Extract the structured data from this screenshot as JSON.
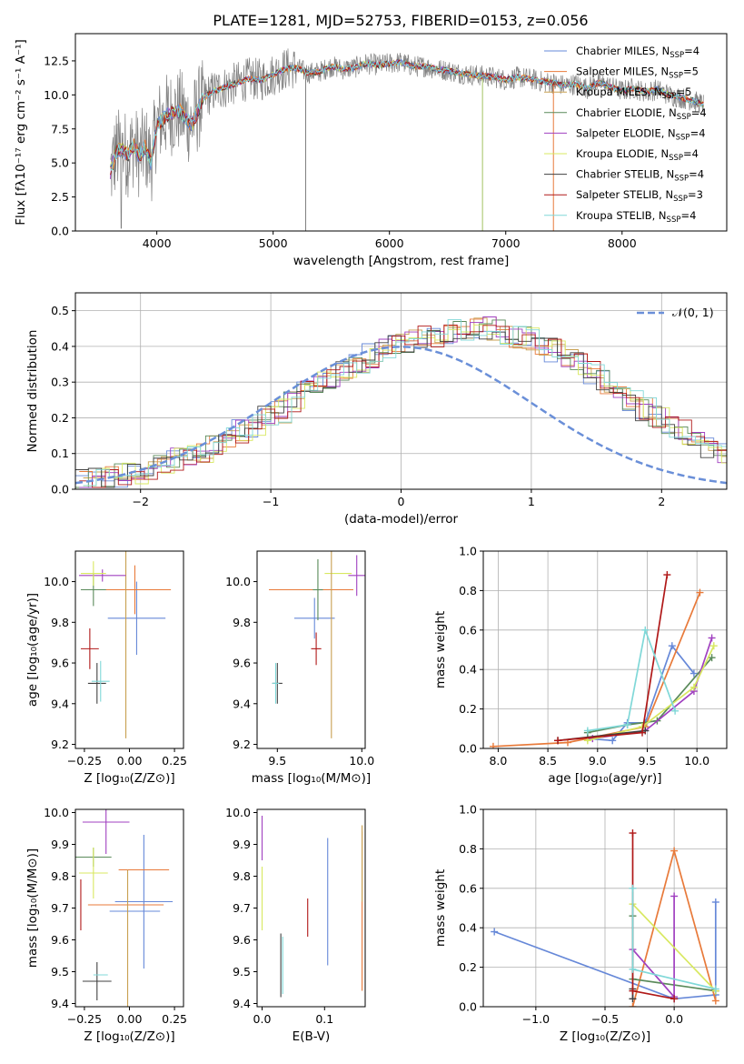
{
  "figure": {
    "title": "PLATE=1281, MJD=52753, FIBERID=0153, z=0.056"
  },
  "colors": {
    "data": "#808080",
    "series": [
      "#6688d8",
      "#e87a3a",
      "#c8a050",
      "#5a8a5a",
      "#a040c0",
      "#d8e860",
      "#404040",
      "#b01818",
      "#80d8d8"
    ],
    "normal": "#6a8fd8"
  },
  "chart_data": [
    {
      "id": "spectrum",
      "type": "line",
      "title": "PLATE=1281, MJD=52753, FIBERID=0153, z=0.056",
      "xlabel": "wavelength [Angstrom, rest frame]",
      "ylabel": "Flux [fλ10⁻¹⁷ erg cm⁻² s⁻¹ A⁻¹]",
      "xlim": [
        3300,
        8900
      ],
      "ylim": [
        0,
        14.5
      ],
      "xticks": [
        "4000",
        "5000",
        "6000",
        "7000",
        "8000"
      ],
      "xtick_values": [
        4000,
        5000,
        6000,
        7000,
        8000
      ],
      "yticks": [
        "0.0",
        "2.5",
        "5.0",
        "7.5",
        "10.0",
        "12.5"
      ],
      "ytick_values": [
        0,
        2.5,
        5,
        7.5,
        10,
        12.5
      ],
      "grid": false,
      "legend": "upper-right",
      "continuum": {
        "x": [
          3600,
          3650,
          3700,
          3750,
          3800,
          3850,
          3900,
          3950,
          4000,
          4100,
          4200,
          4300,
          4400,
          4500,
          4600,
          4700,
          4800,
          4900,
          5000,
          5100,
          5200,
          5300,
          5400,
          5500,
          5600,
          5700,
          5800,
          5900,
          6000,
          6100,
          6200,
          6300,
          6400,
          6500,
          6600,
          6700,
          6800,
          6900,
          7000,
          7100,
          7200,
          7300,
          7400,
          7500,
          7600,
          7700,
          7800,
          7900,
          8000,
          8100,
          8200,
          8300,
          8400,
          8500,
          8600,
          8700
        ],
        "y": [
          4.3,
          5.8,
          6.0,
          5.6,
          6.3,
          5.5,
          6.2,
          5.0,
          7.8,
          8.6,
          8.8,
          7.8,
          9.8,
          10.3,
          10.6,
          10.9,
          11.2,
          11.1,
          11.5,
          11.9,
          12.0,
          11.6,
          11.7,
          12.1,
          11.9,
          12.0,
          12.3,
          12.2,
          12.3,
          12.4,
          12.1,
          12.1,
          11.9,
          11.8,
          11.6,
          11.5,
          11.4,
          11.3,
          11.1,
          11.3,
          11.2,
          11.0,
          10.9,
          10.7,
          10.8,
          10.5,
          10.9,
          10.6,
          10.3,
          10.5,
          10.2,
          10.4,
          10.0,
          9.8,
          9.6,
          9.3
        ]
      },
      "series": [
        {
          "name": "Chabrier MILES, N_SSP=4",
          "label": "Chabrier MILES, N",
          "sub": "SSP",
          "tail": "=4"
        },
        {
          "name": "Salpeter MILES, N_SSP=5",
          "label": "Salpeter MILES, N",
          "sub": "SSP",
          "tail": "=5"
        },
        {
          "name": "Kroupa MILES, N_SSP=5",
          "label": "Kroupa MILES, N",
          "sub": "SSP",
          "tail": "=5"
        },
        {
          "name": "Chabrier ELODIE, N_SSP=4",
          "label": "Chabrier ELODIE, N",
          "sub": "SSP",
          "tail": "=4"
        },
        {
          "name": "Salpeter ELODIE, N_SSP=4",
          "label": "Salpeter ELODIE, N",
          "sub": "SSP",
          "tail": "=4"
        },
        {
          "name": "Kroupa ELODIE, N_SSP=4",
          "label": "Kroupa ELODIE, N",
          "sub": "SSP",
          "tail": "=4"
        },
        {
          "name": "Chabrier STELIB, N_SSP=4",
          "label": "Chabrier STELIB, N",
          "sub": "SSP",
          "tail": "=4"
        },
        {
          "name": "Salpeter STELIB, N_SSP=3",
          "label": "Salpeter STELIB, N",
          "sub": "SSP",
          "tail": "=3"
        },
        {
          "name": "Kroupa STELIB, N_SSP=4",
          "label": "Kroupa STELIB, N",
          "sub": "SSP",
          "tail": "=4"
        }
      ]
    },
    {
      "id": "residuals",
      "type": "line",
      "xlabel": "(data-model)/error",
      "ylabel": "Normed distribution",
      "xlim": [
        -2.5,
        2.5
      ],
      "ylim": [
        0,
        0.55
      ],
      "xticks": [
        "−2",
        "−1",
        "0",
        "1",
        "2"
      ],
      "xtick_values": [
        -2,
        -1,
        0,
        1,
        2
      ],
      "yticks": [
        "0.0",
        "0.1",
        "0.2",
        "0.3",
        "0.4",
        "0.5"
      ],
      "ytick_values": [
        0,
        0.1,
        0.2,
        0.3,
        0.4,
        0.5
      ],
      "grid": true,
      "legend_entry": "𝒩(0, 1)",
      "legend": "upper-right",
      "bin_width": 0.1,
      "hist_envelope": [
        0.02,
        0.025,
        0.035,
        0.04,
        0.045,
        0.055,
        0.07,
        0.085,
        0.1,
        0.11,
        0.125,
        0.14,
        0.16,
        0.18,
        0.2,
        0.22,
        0.245,
        0.27,
        0.295,
        0.315,
        0.34,
        0.36,
        0.375,
        0.39,
        0.405,
        0.415,
        0.425,
        0.43,
        0.44,
        0.445,
        0.45,
        0.45,
        0.44,
        0.43,
        0.42,
        0.405,
        0.39,
        0.37,
        0.35,
        0.33,
        0.3,
        0.28,
        0.25,
        0.225,
        0.2,
        0.18,
        0.16,
        0.14,
        0.12,
        0.105,
        0.09,
        0.075,
        0.065,
        0.055,
        0.045,
        0.035,
        0.03,
        0.025,
        0.02,
        0.018
      ]
    },
    {
      "id": "age-vs-Z",
      "type": "scatter",
      "xlabel": "Z [log₁₀(Z/Z⊙)]",
      "ylabel": "age  [log₁₀(age/yr)]",
      "xlim": [
        -0.3,
        0.3
      ],
      "ylim": [
        9.18,
        10.15
      ],
      "xticks": [
        "−0.25",
        "0.00",
        "0.25"
      ],
      "xtick_values": [
        -0.25,
        0,
        0.25
      ],
      "yticks": [
        "9.2",
        "9.4",
        "9.6",
        "9.8",
        "10.0"
      ],
      "ytick_values": [
        9.2,
        9.4,
        9.6,
        9.8,
        10.0
      ],
      "points": [
        {
          "x": 0.04,
          "y": 9.82,
          "xerr": 0.16,
          "yerr": 0.18,
          "c": 0
        },
        {
          "x": 0.03,
          "y": 9.96,
          "xerr": 0.2,
          "yerr": 0.12,
          "c": 1
        },
        {
          "x": -0.02,
          "y": 9.7,
          "xerr": 0.0,
          "yerr": 0.47,
          "c": 2
        },
        {
          "x": -0.2,
          "y": 9.96,
          "xerr": 0.07,
          "yerr": 0.08,
          "c": 3
        },
        {
          "x": -0.15,
          "y": 10.03,
          "xerr": 0.13,
          "yerr": 0.03,
          "c": 4
        },
        {
          "x": -0.2,
          "y": 10.04,
          "xerr": 0.07,
          "yerr": 0.06,
          "c": 5
        },
        {
          "x": -0.18,
          "y": 9.5,
          "xerr": 0.05,
          "yerr": 0.1,
          "c": 6
        },
        {
          "x": -0.22,
          "y": 9.67,
          "xerr": 0.05,
          "yerr": 0.1,
          "c": 7
        },
        {
          "x": -0.16,
          "y": 9.51,
          "xerr": 0.05,
          "yerr": 0.1,
          "c": 8
        }
      ]
    },
    {
      "id": "age-vs-mass",
      "type": "scatter",
      "xlabel": "mass [log₁₀(M/M⊙)]",
      "ylabel": "",
      "xlim": [
        9.38,
        10.02
      ],
      "ylim": [
        9.18,
        10.15
      ],
      "xticks": [
        "9.5",
        "10.0"
      ],
      "xtick_values": [
        9.5,
        10.0
      ],
      "yticks": [
        "9.2",
        "9.4",
        "9.6",
        "9.8",
        "10.0"
      ],
      "ytick_values": [
        9.2,
        9.4,
        9.6,
        9.8,
        10.0
      ],
      "points": [
        {
          "x": 9.72,
          "y": 9.82,
          "xerr": 0.12,
          "yerr": 0.1,
          "c": 0
        },
        {
          "x": 9.7,
          "y": 9.96,
          "xerr": 0.25,
          "yerr": 0.0,
          "c": 1
        },
        {
          "x": 9.97,
          "y": 10.03,
          "xerr": 0.05,
          "yerr": 0.1,
          "c": 4
        },
        {
          "x": 9.86,
          "y": 10.04,
          "xerr": 0.08,
          "yerr": 0.0,
          "c": 5
        },
        {
          "x": 9.74,
          "y": 9.96,
          "xerr": 0.03,
          "yerr": 0.15,
          "c": 3
        },
        {
          "x": 9.73,
          "y": 9.67,
          "xerr": 0.03,
          "yerr": 0.08,
          "c": 7
        },
        {
          "x": 9.5,
          "y": 9.5,
          "xerr": 0.03,
          "yerr": 0.1,
          "c": 6
        },
        {
          "x": 9.49,
          "y": 9.5,
          "xerr": 0.02,
          "yerr": 0.1,
          "c": 8
        },
        {
          "x": 9.82,
          "y": 9.7,
          "xerr": 0.0,
          "yerr": 0.47,
          "c": 2
        }
      ]
    },
    {
      "id": "massweight-vs-age",
      "type": "line",
      "xlabel": "age  [log₁₀(age/yr)]",
      "ylabel": "mass weight",
      "xlim": [
        7.85,
        10.3
      ],
      "ylim": [
        0,
        1
      ],
      "xticks": [
        "8.0",
        "8.5",
        "9.0",
        "9.5",
        "10.0"
      ],
      "xtick_values": [
        8.0,
        8.5,
        9.0,
        9.5,
        10.0
      ],
      "yticks": [
        "0.0",
        "0.2",
        "0.4",
        "0.6",
        "0.8",
        "1.0"
      ],
      "ytick_values": [
        0,
        0.2,
        0.4,
        0.6,
        0.8,
        1.0
      ],
      "grid": true,
      "series": [
        {
          "c": 0,
          "x": [
            8.9,
            9.15,
            9.3,
            9.48,
            9.75,
            9.97
          ],
          "y": [
            0.05,
            0.04,
            0.13,
            0.13,
            0.52,
            0.38
          ]
        },
        {
          "c": 1,
          "x": [
            7.95,
            8.7,
            9.48,
            10.03
          ],
          "y": [
            0.01,
            0.03,
            0.11,
            0.79
          ]
        },
        {
          "c": 3,
          "x": [
            8.9,
            9.3,
            9.6,
            10.15
          ],
          "y": [
            0.08,
            0.12,
            0.14,
            0.46
          ]
        },
        {
          "c": 4,
          "x": [
            8.95,
            9.48,
            9.97,
            10.15
          ],
          "y": [
            0.05,
            0.09,
            0.29,
            0.56
          ]
        },
        {
          "c": 5,
          "x": [
            8.9,
            9.45,
            9.97,
            10.17
          ],
          "y": [
            0.04,
            0.11,
            0.31,
            0.52
          ]
        },
        {
          "c": 6,
          "x": [
            8.6,
            9.48
          ],
          "y": [
            0.04,
            0.09
          ]
        },
        {
          "c": 7,
          "x": [
            8.6,
            9.45,
            9.7
          ],
          "y": [
            0.04,
            0.08,
            0.88
          ]
        },
        {
          "c": 8,
          "x": [
            8.9,
            9.3,
            9.48,
            9.78
          ],
          "y": [
            0.09,
            0.12,
            0.6,
            0.19
          ]
        }
      ]
    },
    {
      "id": "mass-vs-Z",
      "type": "scatter",
      "xlabel": "Z [log₁₀(Z/Z⊙)]",
      "ylabel": "mass [log₁₀(M/M⊙)]",
      "xlim": [
        -0.3,
        0.3
      ],
      "ylim": [
        9.39,
        10.01
      ],
      "xticks": [
        "−0.25",
        "0.00",
        "0.25"
      ],
      "xtick_values": [
        -0.25,
        0,
        0.25
      ],
      "yticks": [
        "9.4",
        "9.5",
        "9.6",
        "9.7",
        "9.8",
        "9.9",
        "10.0"
      ],
      "ytick_values": [
        9.4,
        9.5,
        9.6,
        9.7,
        9.8,
        9.9,
        10.0
      ],
      "points": [
        {
          "x": 0.03,
          "y": 9.69,
          "xerr": 0.14,
          "yerr": 0.0,
          "c": 0
        },
        {
          "x": 0.08,
          "y": 9.72,
          "xerr": 0.16,
          "yerr": 0.21,
          "c": 0
        },
        {
          "x": -0.02,
          "y": 9.71,
          "xerr": 0.21,
          "yerr": 0.0,
          "c": 1
        },
        {
          "x": 0.08,
          "y": 9.82,
          "xerr": 0.14,
          "yerr": 0.0,
          "c": 1
        },
        {
          "x": -0.01,
          "y": 9.6,
          "xerr": 0.0,
          "yerr": 0.22,
          "c": 2
        },
        {
          "x": -0.2,
          "y": 9.86,
          "xerr": 0.1,
          "yerr": 0.03,
          "c": 3
        },
        {
          "x": -0.13,
          "y": 9.97,
          "xerr": 0.13,
          "yerr": 0.1,
          "c": 4
        },
        {
          "x": -0.2,
          "y": 9.81,
          "xerr": 0.08,
          "yerr": 0.08,
          "c": 5
        },
        {
          "x": -0.18,
          "y": 9.47,
          "xerr": 0.08,
          "yerr": 0.06,
          "c": 6
        },
        {
          "x": -0.27,
          "y": 9.71,
          "xerr": 0.0,
          "yerr": 0.08,
          "c": 7
        },
        {
          "x": -0.16,
          "y": 9.49,
          "xerr": 0.04,
          "yerr": 0.0,
          "c": 8
        }
      ]
    },
    {
      "id": "mass-vs-EBV",
      "type": "scatter",
      "xlabel": "E(B-V)",
      "ylabel": "",
      "xlim": [
        -0.008,
        0.165
      ],
      "ylim": [
        9.39,
        10.01
      ],
      "xticks": [
        "0.0",
        "0.1"
      ],
      "xtick_values": [
        0,
        0.1
      ],
      "yticks": [
        "9.4",
        "9.5",
        "9.6",
        "9.7",
        "9.8",
        "9.9",
        "10.0"
      ],
      "ytick_values": [
        9.4,
        9.5,
        9.6,
        9.7,
        9.8,
        9.9,
        10.0
      ],
      "points": [
        {
          "x": 0.0,
          "y": 9.92,
          "xerr": 0,
          "yerr": 0.07,
          "c": 4
        },
        {
          "x": 0.0,
          "y": 9.73,
          "xerr": 0,
          "yerr": 0.1,
          "c": 5
        },
        {
          "x": 0.03,
          "y": 9.52,
          "xerr": 0,
          "yerr": 0.1,
          "c": 6
        },
        {
          "x": 0.033,
          "y": 9.52,
          "xerr": 0,
          "yerr": 0.09,
          "c": 8
        },
        {
          "x": 0.073,
          "y": 9.67,
          "xerr": 0,
          "yerr": 0.06,
          "c": 7
        },
        {
          "x": 0.105,
          "y": 9.72,
          "xerr": 0,
          "yerr": 0.2,
          "c": 0
        },
        {
          "x": 0.16,
          "y": 9.69,
          "xerr": 0,
          "yerr": 0.25,
          "c": 1
        },
        {
          "x": 0.16,
          "y": 9.84,
          "xerr": 0,
          "yerr": 0.12,
          "c": 2
        }
      ]
    },
    {
      "id": "massweight-vs-Z",
      "type": "line",
      "xlabel": "Z [log₁₀(Z/Z⊙)]",
      "ylabel": "mass weight",
      "xlim": [
        -1.38,
        0.38
      ],
      "ylim": [
        0,
        1
      ],
      "xticks": [
        "−1.0",
        "−0.5",
        "0.0"
      ],
      "xtick_values": [
        -1.0,
        -0.5,
        0.0
      ],
      "yticks": [
        "0.0",
        "0.2",
        "0.4",
        "0.6",
        "0.8",
        "1.0"
      ],
      "ytick_values": [
        0,
        0.2,
        0.4,
        0.6,
        0.8,
        1.0
      ],
      "grid": true,
      "series": [
        {
          "c": 0,
          "x": [
            -1.3,
            0.0,
            0.3,
            0.3
          ],
          "y": [
            0.38,
            0.04,
            0.06,
            0.53
          ]
        },
        {
          "c": 1,
          "x": [
            -0.3,
            0.0,
            0.3
          ],
          "y": [
            0.0,
            0.79,
            0.03
          ]
        },
        {
          "c": 3,
          "x": [
            -0.3,
            -0.3,
            0.3
          ],
          "y": [
            0.46,
            0.14,
            0.08
          ]
        },
        {
          "c": 4,
          "x": [
            -0.3,
            0.0,
            0.0
          ],
          "y": [
            0.29,
            0.05,
            0.56
          ]
        },
        {
          "c": 5,
          "x": [
            -0.3,
            0.3
          ],
          "y": [
            0.52,
            0.08
          ]
        },
        {
          "c": 6,
          "x": [
            -0.3,
            -0.3
          ],
          "y": [
            0.09,
            0.04
          ]
        },
        {
          "c": 7,
          "x": [
            -0.3,
            -0.3,
            0.0
          ],
          "y": [
            0.88,
            0.08,
            0.04
          ]
        },
        {
          "c": 8,
          "x": [
            -0.3,
            -0.3,
            0.3
          ],
          "y": [
            0.6,
            0.19,
            0.09
          ]
        }
      ]
    }
  ]
}
